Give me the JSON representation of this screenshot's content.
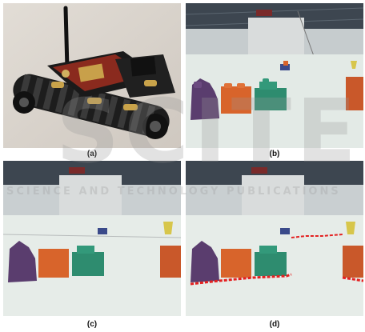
{
  "figure": {
    "captions": [
      "(a)",
      "(b)",
      "(c)",
      "(d)"
    ],
    "watermark": [
      "SCITE",
      "SCIENCE AND TECHNOLOGY PUBLICATIONS"
    ]
  },
  "colors": {
    "floor": "#e6ece8",
    "wall": "#c9cfd1",
    "block_purple": "#5a3d6e",
    "block_orange": "#d8642b",
    "block_green": "#2e8c6f",
    "obstacle_boundary": "#e42020"
  }
}
